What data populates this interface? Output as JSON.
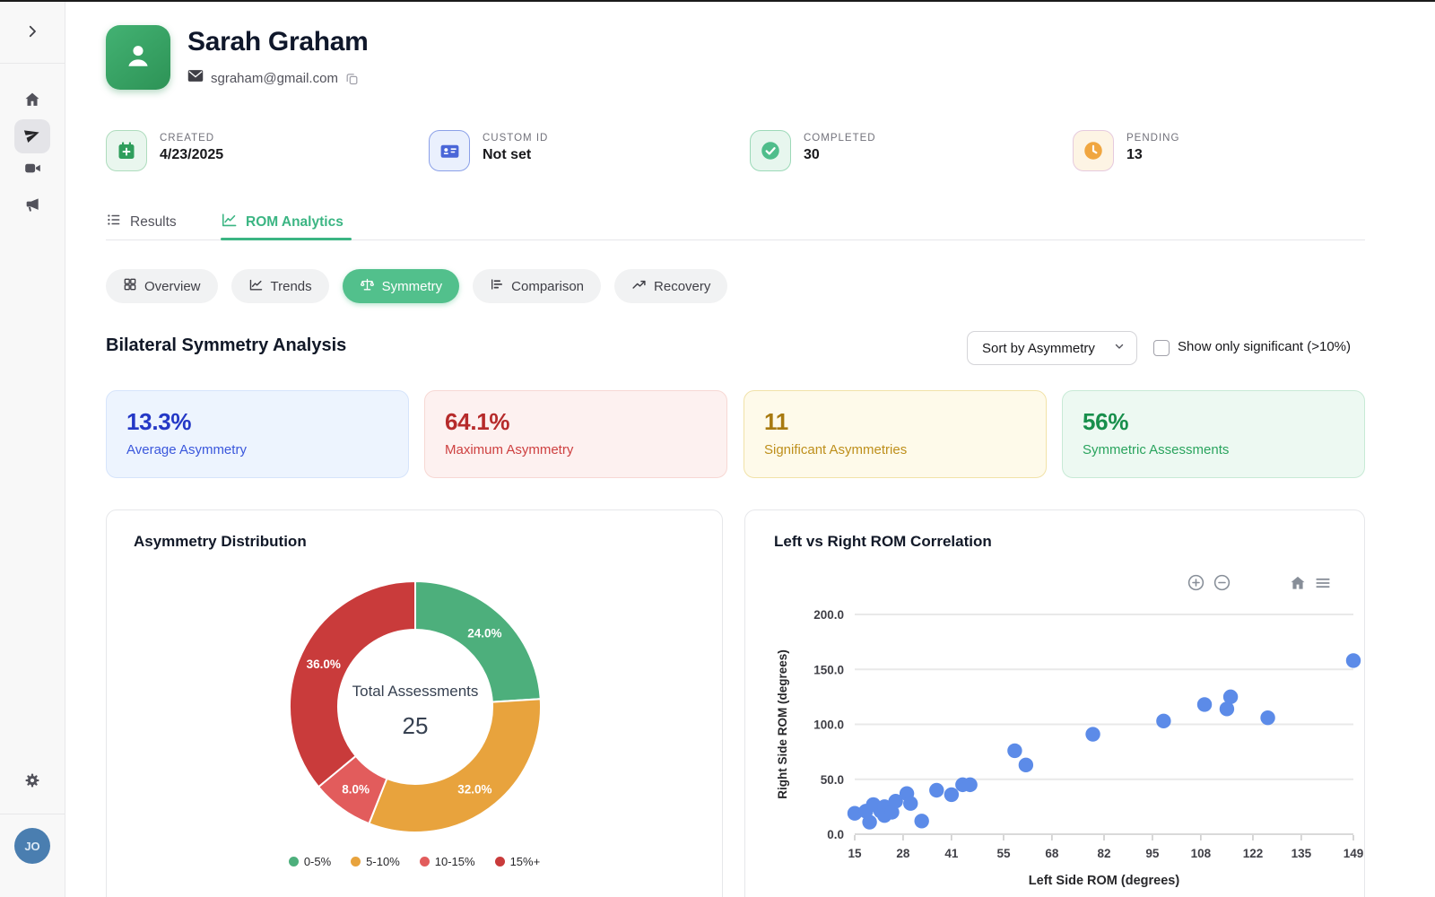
{
  "window": {
    "top_edge_color": "#1b1b1b"
  },
  "sidebar": {
    "expand_icon": "chevron-right-icon",
    "items": [
      {
        "name": "home",
        "icon": "home-icon",
        "active": false
      },
      {
        "name": "assessments",
        "icon": "paper-plane-icon",
        "active": true
      },
      {
        "name": "video",
        "icon": "video-camera-icon",
        "active": false
      },
      {
        "name": "announcements",
        "icon": "megaphone-icon",
        "active": false
      }
    ],
    "settings_icon": "gear-icon",
    "avatar_initials": "JO"
  },
  "profile": {
    "name": "Sarah Graham",
    "email": "sgraham@gmail.com",
    "avatar_icon": "person-icon",
    "email_icon": "envelope-icon",
    "copy_icon": "copy-icon",
    "avatar_color": "#3aa968"
  },
  "info_cards": [
    {
      "label": "CREATED",
      "value": "4/23/2025",
      "icon": "calendar-plus-icon",
      "icon_color": "#2f9e5c",
      "icon_bg": "#e9f6ee",
      "icon_border": "#aedcbd"
    },
    {
      "label": "CUSTOM ID",
      "value": "Not set",
      "icon": "id-card-icon",
      "icon_color": "#4a66d8",
      "icon_bg": "#eaf0fd",
      "icon_border": "#8ba0e8"
    },
    {
      "label": "COMPLETED",
      "value": "30",
      "icon": "check-circle-icon",
      "icon_color": "#4fbd8b",
      "icon_bg": "#e7f6ee",
      "icon_border": "#9cd9b8"
    },
    {
      "label": "PENDING",
      "value": "13",
      "icon": "clock-icon",
      "icon_color": "#f0a640",
      "icon_bg": "#fdf4e4",
      "icon_border": "#e6c audience088"
    }
  ],
  "tabs": [
    {
      "label": "Results",
      "icon": "list-icon",
      "active": false
    },
    {
      "label": "ROM Analytics",
      "icon": "line-chart-icon",
      "active": true
    }
  ],
  "subtabs": [
    {
      "label": "Overview",
      "icon": "grid-icon",
      "active": false
    },
    {
      "label": "Trends",
      "icon": "trend-line-icon",
      "active": false
    },
    {
      "label": "Symmetry",
      "icon": "balance-scale-icon",
      "active": true
    },
    {
      "label": "Comparison",
      "icon": "bar-chart-icon",
      "active": false
    },
    {
      "label": "Recovery",
      "icon": "trending-up-icon",
      "active": false
    }
  ],
  "section": {
    "title": "Bilateral Symmetry Analysis",
    "sort_dropdown": {
      "value": "Sort by Asymmetry",
      "icon": "chevron-down-icon"
    },
    "filter_checkbox": {
      "label": "Show only significant (>10%)",
      "checked": false
    }
  },
  "stat_cards": [
    {
      "value": "13.3%",
      "label": "Average Asymmetry",
      "value_color": "#2438c6",
      "label_color": "#3a57dc",
      "bg": "#edf4fe",
      "border": "#d6e4fb"
    },
    {
      "value": "64.1%",
      "label": "Maximum Asymmetry",
      "value_color": "#b62b2b",
      "label_color": "#ce4040",
      "bg": "#fdf1f0",
      "border": "#f7d8d4"
    },
    {
      "value": "11",
      "label": "Significant Asymmetries",
      "value_color": "#a87a10",
      "label_color": "#be8f1b",
      "bg": "#fefaea",
      "border": "#f1e2a8"
    },
    {
      "value": "56%",
      "label": "Symmetric Assessments",
      "value_color": "#188f4c",
      "label_color": "#2aa45e",
      "bg": "#edf9f2",
      "border": "#c8ead6"
    }
  ],
  "chart_data": [
    {
      "type": "pie",
      "title": "Asymmetry Distribution",
      "center_label": "Total Assessments",
      "center_value": "25",
      "legend_position": "bottom",
      "slices": [
        {
          "label": "0-5%",
          "percent": 24.0,
          "color": "#4daf7c"
        },
        {
          "label": "5-10%",
          "percent": 32.0,
          "color": "#e8a33d"
        },
        {
          "label": "10-15%",
          "percent": 8.0,
          "color": "#e25c5c"
        },
        {
          "label": "15%+",
          "percent": 36.0,
          "color": "#c93b3b"
        }
      ]
    },
    {
      "type": "scatter",
      "title": "Left vs Right ROM Correlation",
      "xlabel": "Left Side ROM (degrees)",
      "ylabel": "Right Side ROM (degrees)",
      "xlim": [
        15,
        149
      ],
      "ylim": [
        0,
        200
      ],
      "x_ticks": [
        15,
        28,
        41,
        55,
        68,
        82,
        95,
        108,
        122,
        135,
        149
      ],
      "y_ticks": [
        "0.0",
        "50.0",
        "100.0",
        "150.0",
        "200.0"
      ],
      "grid": "horizontal",
      "point_color": "#5c8be8",
      "toolbar_icons": [
        "zoom-in-icon",
        "zoom-out-icon",
        "home-icon",
        "menu-icon"
      ],
      "points": [
        [
          15,
          19
        ],
        [
          18,
          21
        ],
        [
          19,
          11
        ],
        [
          20,
          27
        ],
        [
          22,
          21
        ],
        [
          23,
          25
        ],
        [
          23,
          17
        ],
        [
          25,
          20
        ],
        [
          26,
          30
        ],
        [
          29,
          37
        ],
        [
          30,
          28
        ],
        [
          33,
          12
        ],
        [
          37,
          40
        ],
        [
          41,
          36
        ],
        [
          44,
          45
        ],
        [
          46,
          45
        ],
        [
          58,
          76
        ],
        [
          61,
          63
        ],
        [
          79,
          91
        ],
        [
          98,
          103
        ],
        [
          109,
          118
        ],
        [
          115,
          114
        ],
        [
          116,
          125
        ],
        [
          126,
          106
        ],
        [
          149,
          158
        ]
      ]
    }
  ]
}
